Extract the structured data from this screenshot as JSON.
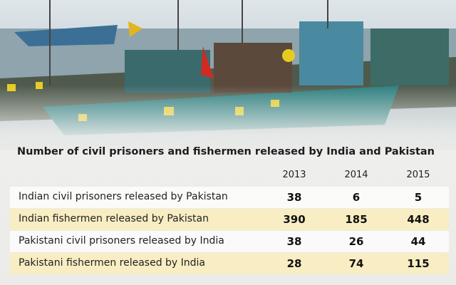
{
  "title": "Number of civil prisoners and fishermen released by India and Pakistan",
  "table": {
    "columns": [
      "2013",
      "2014",
      "2015"
    ],
    "rows": [
      {
        "label": "Indian civil prisoners released by Pakistan",
        "values": [
          38,
          6,
          5
        ]
      },
      {
        "label": "Indian fishermen released by Pakistan",
        "values": [
          390,
          185,
          448
        ]
      },
      {
        "label": "Pakistani civil prisoners released by India",
        "values": [
          38,
          26,
          44
        ]
      },
      {
        "label": "Pakistani fishermen released by India",
        "values": [
          28,
          74,
          115
        ]
      }
    ]
  }
}
